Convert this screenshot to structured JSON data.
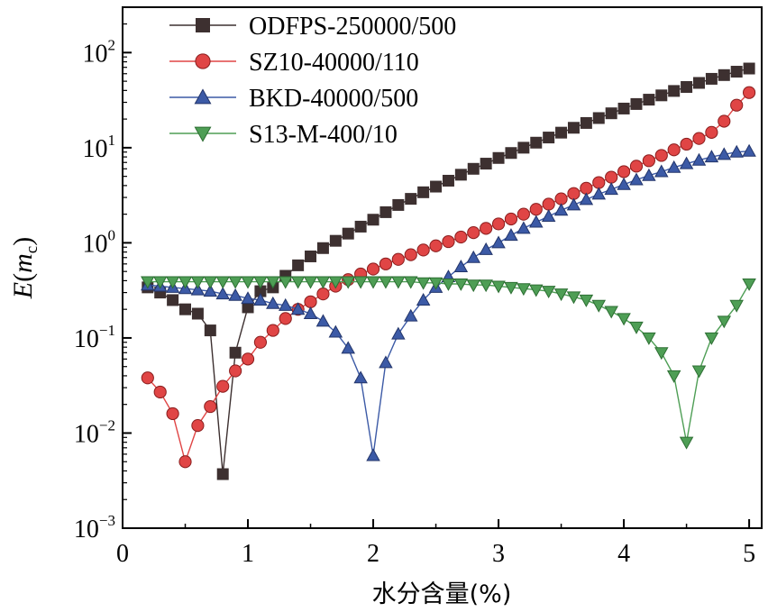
{
  "chart_data": {
    "type": "line",
    "title": "",
    "xlabel": "水分含量(%)",
    "ylabel": {
      "main": "E",
      "paren_open": "(",
      "var": "m",
      "sub": "c",
      "paren_close": ")"
    },
    "xlim": [
      0,
      5.1
    ],
    "ylim": [
      0.001,
      300
    ],
    "yscale": "log",
    "x_ticks": [
      "0",
      "1",
      "2",
      "3",
      "4",
      "5"
    ],
    "y_ticks": [
      {
        "base": "10",
        "exp": "−3",
        "value": 0.001
      },
      {
        "base": "10",
        "exp": "−2",
        "value": 0.01
      },
      {
        "base": "10",
        "exp": "−1",
        "value": 0.1
      },
      {
        "base": "10",
        "exp": "0",
        "value": 1
      },
      {
        "base": "10",
        "exp": "1",
        "value": 10
      },
      {
        "base": "10",
        "exp": "2",
        "value": 100
      }
    ],
    "legend_position": "top-left",
    "series": [
      {
        "name": "ODFPS-250000/500",
        "color": "#3d3030",
        "marker": "square",
        "x": [
          0.2,
          0.3,
          0.4,
          0.5,
          0.6,
          0.7,
          0.8,
          0.9,
          1.0,
          1.1,
          1.2,
          1.3,
          1.4,
          1.5,
          1.6,
          1.7,
          1.8,
          1.9,
          2.0,
          2.1,
          2.2,
          2.3,
          2.4,
          2.5,
          2.6,
          2.7,
          2.8,
          2.9,
          3.0,
          3.1,
          3.2,
          3.3,
          3.4,
          3.5,
          3.6,
          3.7,
          3.8,
          3.9,
          4.0,
          4.1,
          4.2,
          4.3,
          4.4,
          4.5,
          4.6,
          4.7,
          4.8,
          4.9,
          5.0
        ],
        "y": [
          0.34,
          0.3,
          0.25,
          0.2,
          0.18,
          0.12,
          0.0037,
          0.07,
          0.21,
          0.31,
          0.34,
          0.45,
          0.58,
          0.72,
          0.88,
          1.05,
          1.25,
          1.48,
          1.75,
          2.1,
          2.5,
          2.9,
          3.4,
          3.9,
          4.5,
          5.2,
          6.0,
          6.8,
          7.8,
          8.8,
          10.0,
          11.3,
          12.8,
          14.4,
          16.2,
          18.2,
          20.5,
          23.0,
          25.8,
          28.8,
          32.0,
          35.5,
          39.5,
          43.5,
          48.0,
          53.0,
          58.0,
          63.0,
          68.0
        ]
      },
      {
        "name": "SZ10-40000/110",
        "color": "#e04545",
        "marker": "circle",
        "x": [
          0.2,
          0.3,
          0.4,
          0.5,
          0.6,
          0.7,
          0.8,
          0.9,
          1.0,
          1.1,
          1.2,
          1.3,
          1.4,
          1.5,
          1.6,
          1.7,
          1.8,
          1.9,
          2.0,
          2.1,
          2.2,
          2.3,
          2.4,
          2.5,
          2.6,
          2.7,
          2.8,
          2.9,
          3.0,
          3.1,
          3.2,
          3.3,
          3.4,
          3.5,
          3.6,
          3.7,
          3.8,
          3.9,
          4.0,
          4.1,
          4.2,
          4.3,
          4.4,
          4.5,
          4.6,
          4.7,
          4.8,
          4.9,
          5.0
        ],
        "y": [
          0.038,
          0.027,
          0.016,
          0.005,
          0.012,
          0.019,
          0.031,
          0.045,
          0.06,
          0.09,
          0.12,
          0.16,
          0.2,
          0.24,
          0.29,
          0.35,
          0.41,
          0.47,
          0.53,
          0.6,
          0.67,
          0.75,
          0.84,
          0.93,
          1.03,
          1.15,
          1.28,
          1.42,
          1.58,
          1.78,
          2.0,
          2.25,
          2.55,
          2.9,
          3.3,
          3.75,
          4.3,
          4.9,
          5.6,
          6.4,
          7.3,
          8.3,
          9.5,
          10.9,
          12.5,
          14.5,
          19.0,
          28.0,
          38.0
        ]
      },
      {
        "name": "BKD-40000/500",
        "color": "#3c5aa6",
        "marker": "triangle-up",
        "x": [
          0.2,
          0.3,
          0.4,
          0.5,
          0.6,
          0.7,
          0.8,
          0.9,
          1.0,
          1.1,
          1.2,
          1.3,
          1.4,
          1.5,
          1.6,
          1.7,
          1.8,
          1.9,
          2.0,
          2.1,
          2.2,
          2.3,
          2.4,
          2.5,
          2.6,
          2.7,
          2.8,
          2.9,
          3.0,
          3.1,
          3.2,
          3.3,
          3.4,
          3.5,
          3.6,
          3.7,
          3.8,
          3.9,
          4.0,
          4.1,
          4.2,
          4.3,
          4.4,
          4.5,
          4.6,
          4.7,
          4.8,
          4.9,
          5.0
        ],
        "y": [
          0.36,
          0.35,
          0.34,
          0.33,
          0.32,
          0.31,
          0.29,
          0.28,
          0.26,
          0.25,
          0.23,
          0.22,
          0.2,
          0.18,
          0.15,
          0.115,
          0.078,
          0.038,
          0.0058,
          0.055,
          0.11,
          0.17,
          0.25,
          0.34,
          0.44,
          0.56,
          0.7,
          0.85,
          1.0,
          1.2,
          1.42,
          1.65,
          1.9,
          2.2,
          2.5,
          2.85,
          3.25,
          3.65,
          4.1,
          4.6,
          5.1,
          5.6,
          6.2,
          6.8,
          7.4,
          8.0,
          8.5,
          9.0,
          9.2
        ]
      },
      {
        "name": "S13-M-400/10",
        "color": "#4e9e55",
        "marker": "triangle-down",
        "x": [
          0.2,
          0.3,
          0.4,
          0.5,
          0.6,
          0.7,
          0.8,
          0.9,
          1.0,
          1.1,
          1.2,
          1.3,
          1.4,
          1.5,
          1.6,
          1.7,
          1.8,
          1.9,
          2.0,
          2.1,
          2.2,
          2.3,
          2.4,
          2.5,
          2.6,
          2.7,
          2.8,
          2.9,
          3.0,
          3.1,
          3.2,
          3.3,
          3.4,
          3.5,
          3.6,
          3.7,
          3.8,
          3.9,
          4.0,
          4.1,
          4.2,
          4.3,
          4.4,
          4.5,
          4.6,
          4.7,
          4.8,
          4.9,
          5.0
        ],
        "y": [
          0.39,
          0.39,
          0.39,
          0.39,
          0.39,
          0.39,
          0.39,
          0.39,
          0.39,
          0.39,
          0.39,
          0.39,
          0.39,
          0.39,
          0.39,
          0.39,
          0.39,
          0.39,
          0.39,
          0.39,
          0.39,
          0.39,
          0.38,
          0.38,
          0.37,
          0.37,
          0.36,
          0.36,
          0.35,
          0.34,
          0.33,
          0.32,
          0.31,
          0.29,
          0.27,
          0.25,
          0.22,
          0.19,
          0.16,
          0.13,
          0.1,
          0.07,
          0.04,
          0.008,
          0.045,
          0.1,
          0.15,
          0.22,
          0.37
        ]
      }
    ]
  }
}
